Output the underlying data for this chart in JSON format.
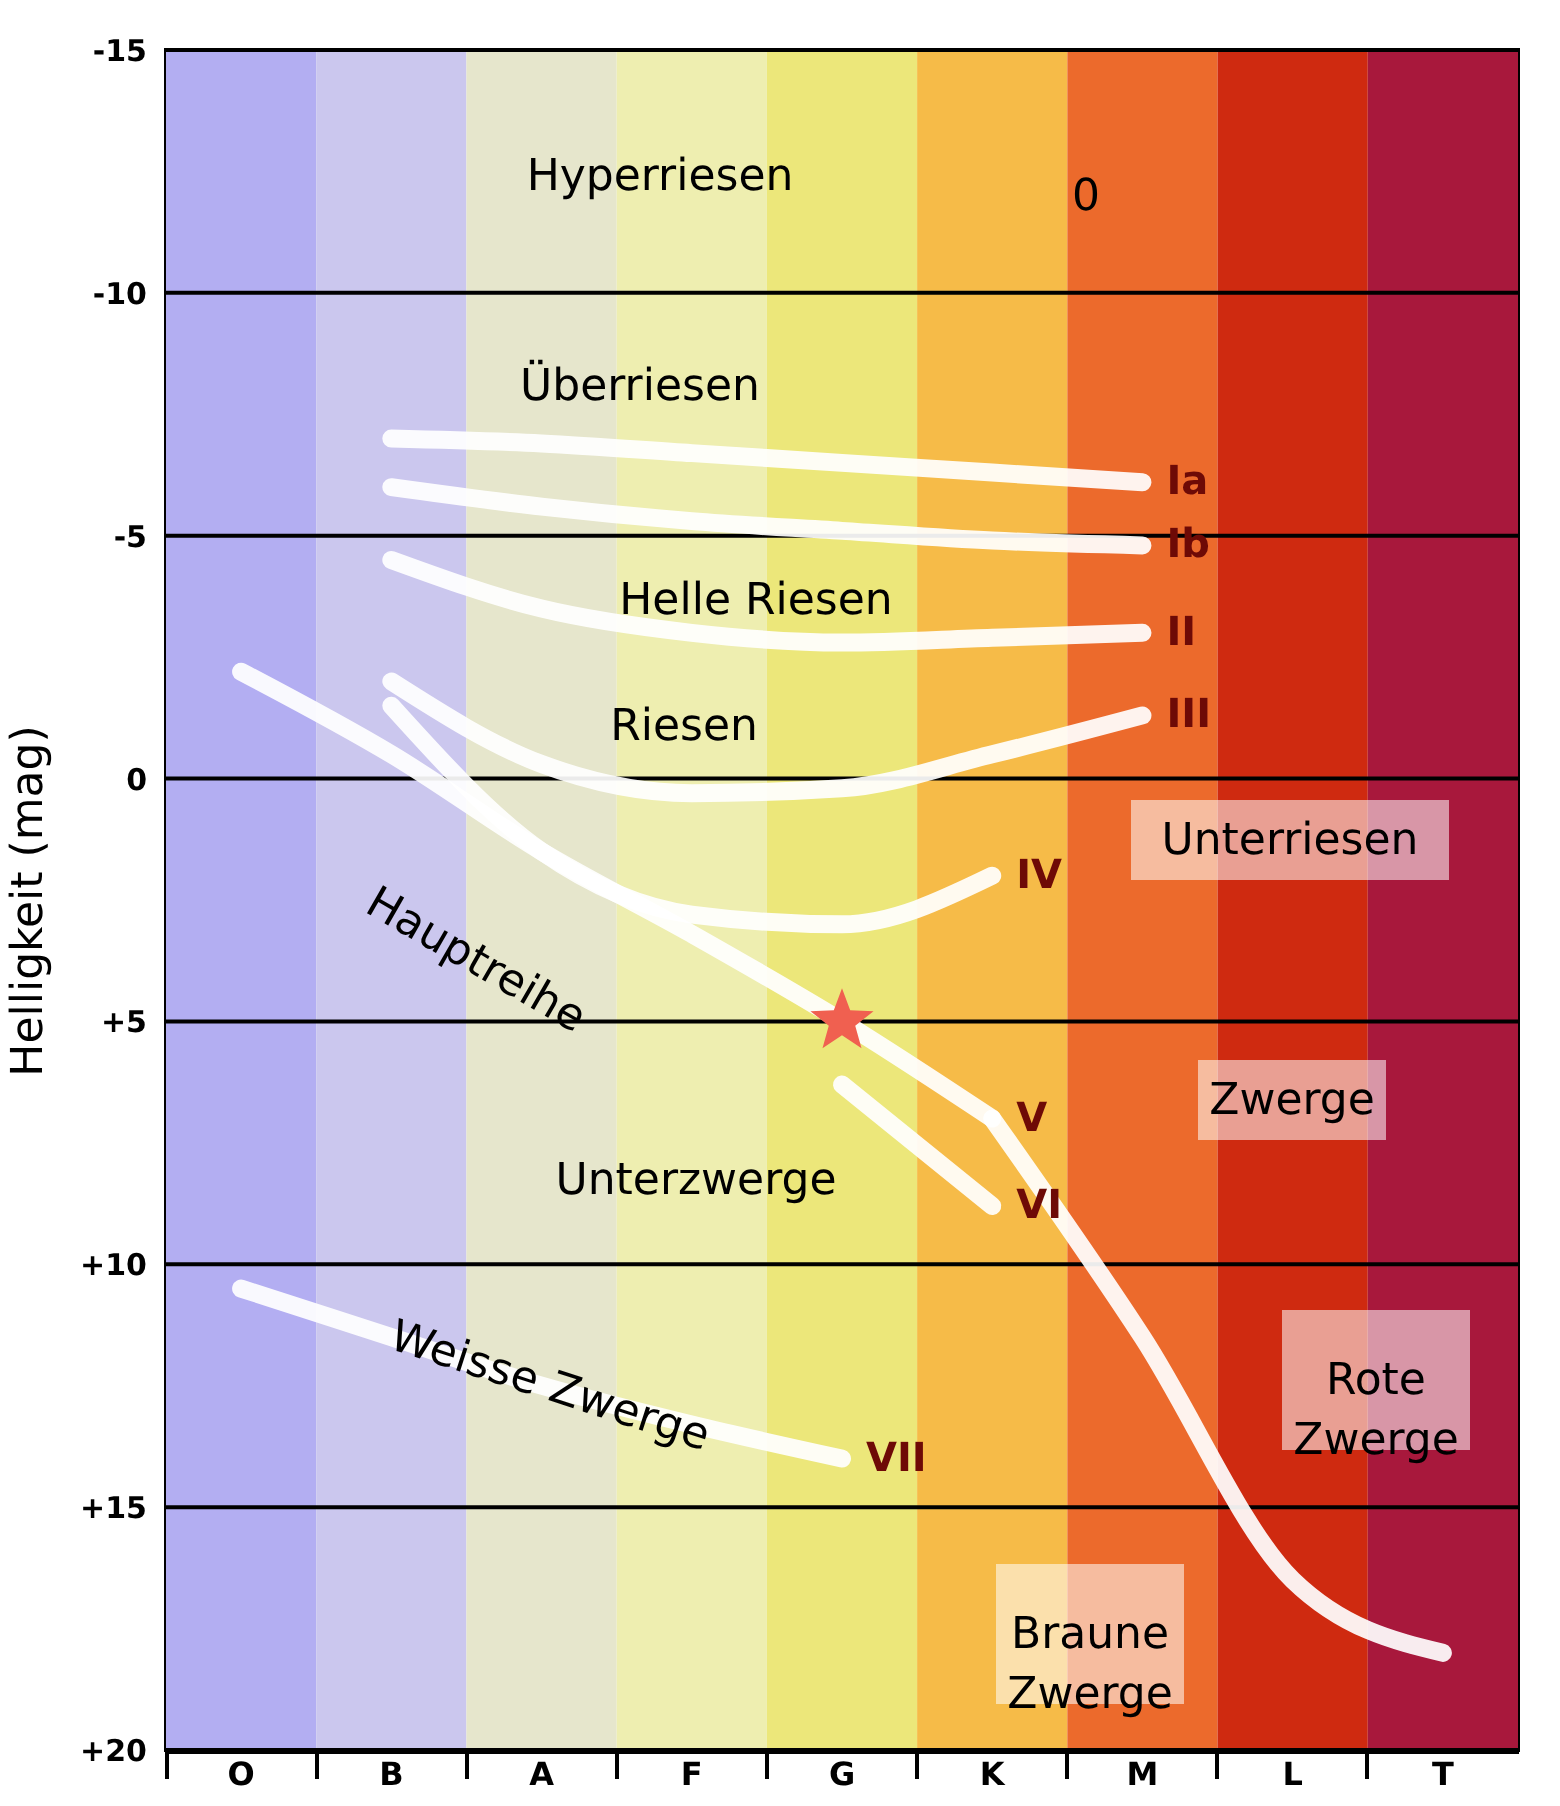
{
  "chart_data": {
    "type": "line",
    "ylabel": "Helligkeit (mag)",
    "categories": [
      "O",
      "B",
      "A",
      "F",
      "G",
      "K",
      "M",
      "L",
      "T"
    ],
    "ylim": [
      20,
      -15
    ],
    "yticks": [
      -15,
      -10,
      -5,
      0,
      {
        "value": 5,
        "label": "+5"
      },
      {
        "value": 10,
        "label": "+10"
      },
      {
        "value": 15,
        "label": "+15"
      },
      {
        "value": 20,
        "label": "+20"
      }
    ],
    "grid": "y",
    "line_style": "solid",
    "series": [
      {
        "name": "Ia",
        "color": "#ffffff",
        "values": [
          null,
          -7.0,
          -6.9,
          -6.7,
          -6.5,
          -6.3,
          -6.1,
          null,
          null
        ]
      },
      {
        "name": "Ib",
        "color": "#ffffff",
        "values": [
          null,
          -6.0,
          -5.6,
          -5.3,
          -5.1,
          -4.9,
          -4.8,
          null,
          null
        ]
      },
      {
        "name": "II",
        "color": "#ffffff",
        "values": [
          null,
          -4.5,
          -3.5,
          -3.0,
          -2.8,
          -2.9,
          -3.0,
          null,
          null
        ]
      },
      {
        "name": "III",
        "color": "#ffffff",
        "values": [
          null,
          -2.0,
          -0.3,
          0.3,
          0.2,
          -0.5,
          -1.3,
          null,
          null
        ]
      },
      {
        "name": "IV",
        "color": "#ffffff",
        "values": [
          null,
          -1.5,
          1.5,
          2.8,
          3.0,
          2.0,
          null,
          null,
          null
        ]
      },
      {
        "name": "V",
        "color": "#ffffff",
        "values": [
          -2.2,
          -0.5,
          1.5,
          3.2,
          5.0,
          7.0,
          null,
          null,
          null
        ]
      },
      {
        "color": "#ffffff",
        "values": [
          null,
          null,
          null,
          null,
          null,
          7.0,
          11.5,
          16.5,
          18.0
        ]
      },
      {
        "name": "VI",
        "color": "#ffffff",
        "values": [
          null,
          null,
          null,
          null,
          6.3,
          8.8,
          null,
          null,
          null
        ]
      },
      {
        "name": "VII",
        "color": "#ffffff",
        "values": [
          10.5,
          11.5,
          12.5,
          13.3,
          14.0,
          null,
          null,
          null,
          null
        ]
      },
      {
        "type": "scatter",
        "color": "#f06050",
        "marker": "star",
        "x": [
          "G"
        ],
        "values": [
          5
        ]
      }
    ],
    "bands": [
      {
        "axis": "x",
        "from": "O",
        "to": "O",
        "color": "#b3aef2"
      },
      {
        "axis": "x",
        "from": "B",
        "to": "B",
        "color": "#cbc7ee"
      },
      {
        "axis": "x",
        "from": "A",
        "to": "A",
        "color": "#e6e6cc"
      },
      {
        "axis": "x",
        "from": "F",
        "to": "F",
        "color": "#eeeeb0"
      },
      {
        "axis": "x",
        "from": "G",
        "to": "G",
        "color": "#ece77a"
      },
      {
        "axis": "x",
        "from": "K",
        "to": "K",
        "color": "#f6bb48"
      },
      {
        "axis": "x",
        "from": "M",
        "to": "M",
        "color": "#ec6a2c"
      },
      {
        "axis": "x",
        "from": "L",
        "to": "L",
        "color": "#cf2a10"
      },
      {
        "axis": "x",
        "from": "T",
        "to": "T",
        "color": "#a8183c"
      }
    ],
    "annotations": [
      "Hyperriesen",
      "0",
      "Überriesen",
      "Helle Riesen",
      "Riesen",
      "Unterriesen",
      "Hauptreihe",
      "Zwerge",
      "Unterzwerge",
      "Weisse Zwerge",
      "Rote Zwerge",
      "Braune Zwerge"
    ]
  }
}
